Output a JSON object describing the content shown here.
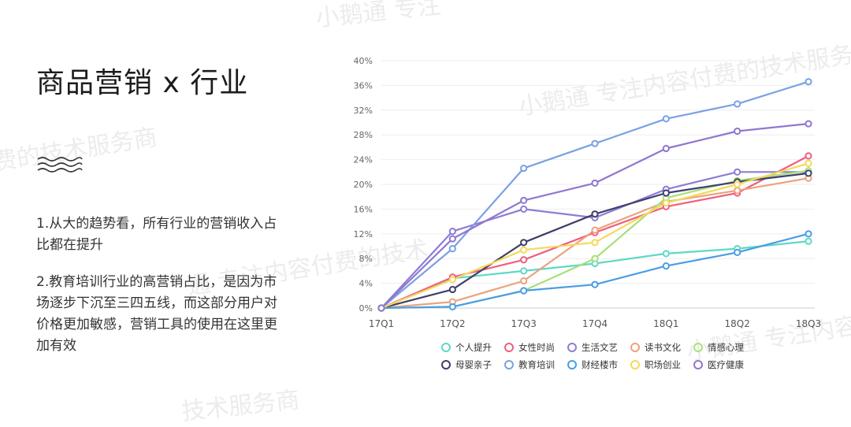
{
  "watermark": "小鹅通 专注内容付费的技术服务商",
  "watermark_parts": [
    "小鹅通 专注",
    "小鹅通 专注内容付费的技术服务商",
    "费的技术服务商",
    "通 专注内容付费的技术",
    "小鹅通 专注内容",
    "技术服务商"
  ],
  "title": "商品营销 x 行业",
  "paragraphs": [
    "1.从大的趋势看，所有行业的营销收入占比都在提升",
    "2.教育培训行业的高营销占比，是因为市场逐步下沉至三四五线，而这部分用户对价格更加敏感，营销工具的使用在这里更加有效"
  ],
  "chart_data": {
    "type": "line",
    "x": [
      "17Q1",
      "17Q2",
      "17Q3",
      "17Q4",
      "18Q1",
      "18Q2",
      "18Q3"
    ],
    "y_ticks": [
      "0%",
      "4%",
      "8%",
      "12%",
      "16%",
      "20%",
      "24%",
      "28%",
      "32%",
      "36%",
      "40%"
    ],
    "ylim": [
      0,
      40
    ],
    "legend_position": "bottom",
    "series": [
      {
        "name": "个人提升",
        "color": "#5fd8c6",
        "values": [
          0,
          4.8,
          6.0,
          7.2,
          8.8,
          9.6,
          10.8
        ]
      },
      {
        "name": "女性时尚",
        "color": "#ee5f7f",
        "values": [
          0,
          5.0,
          7.8,
          12.2,
          16.4,
          18.6,
          24.6
        ]
      },
      {
        "name": "生活文艺",
        "color": "#8c7dd6",
        "values": [
          0,
          12.4,
          16.0,
          14.6,
          19.2,
          22.0,
          22.0
        ]
      },
      {
        "name": "读书文化",
        "color": "#eca27c",
        "values": [
          0,
          1.0,
          4.4,
          12.6,
          17.2,
          19.0,
          21.0
        ]
      },
      {
        "name": "情感心理",
        "color": "#a6e07a",
        "values": [
          0,
          0.2,
          2.8,
          8.0,
          17.8,
          20.6,
          22.2
        ]
      },
      {
        "name": "母婴亲子",
        "color": "#3f3f6b",
        "values": [
          0,
          3.0,
          10.6,
          15.2,
          18.6,
          20.4,
          21.8
        ]
      },
      {
        "name": "教育培训",
        "color": "#7aa0e6",
        "values": [
          0,
          9.6,
          22.6,
          26.6,
          30.6,
          33.0,
          36.6
        ]
      },
      {
        "name": "财经楼市",
        "color": "#4a9de6",
        "values": [
          0,
          0.2,
          2.8,
          3.8,
          6.8,
          9.0,
          12.0
        ]
      },
      {
        "name": "职场创业",
        "color": "#f5d95a",
        "values": [
          0,
          4.6,
          9.4,
          10.6,
          17.0,
          20.0,
          23.4
        ]
      },
      {
        "name": "医疗健康",
        "color": "#9077d0",
        "values": [
          0,
          11.2,
          17.4,
          20.2,
          25.8,
          28.6,
          29.8
        ]
      }
    ]
  }
}
